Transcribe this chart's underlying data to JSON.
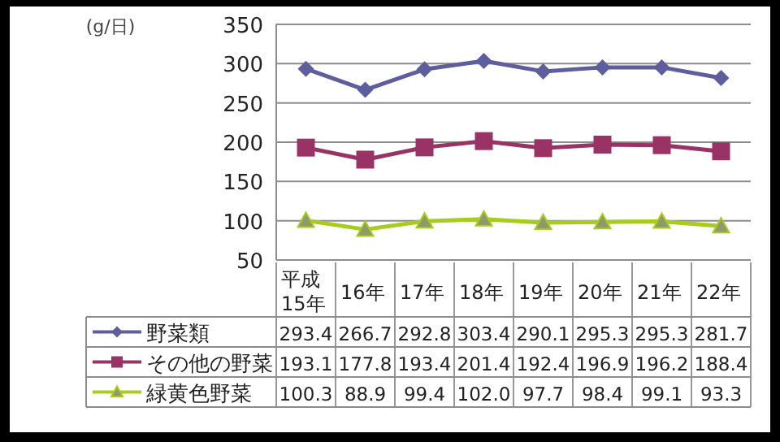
{
  "chart_data": {
    "type": "line",
    "ylabel": "(g/日)",
    "categories": [
      "平成15年",
      "16年",
      "17年",
      "18年",
      "19年",
      "20年",
      "21年",
      "22年"
    ],
    "series": [
      {
        "name": "野菜類",
        "color": "#5e5e9e",
        "marker": "diamond",
        "values": [
          293.4,
          266.7,
          292.8,
          303.4,
          290.1,
          295.3,
          295.3,
          281.7
        ],
        "value_labels": [
          "293.4",
          "266.7",
          "292.8",
          "303.4",
          "290.1",
          "295.3",
          "295.3",
          "281.7"
        ]
      },
      {
        "name": "その他の野菜",
        "color": "#993366",
        "marker": "square",
        "values": [
          193.1,
          177.8,
          193.4,
          201.4,
          192.4,
          196.9,
          196.2,
          188.4
        ],
        "value_labels": [
          "193.1",
          "177.8",
          "193.4",
          "201.4",
          "192.4",
          "196.9",
          "196.2",
          "188.4"
        ]
      },
      {
        "name": "緑黄色野菜",
        "color": "#a8cc1c",
        "marker": "triangle",
        "values": [
          100.3,
          88.9,
          99.4,
          102.0,
          97.7,
          98.4,
          99.1,
          93.3
        ],
        "value_labels": [
          "100.3",
          "88.9",
          "99.4",
          "102.0",
          "97.7",
          "98.4",
          "99.1",
          "93.3"
        ]
      }
    ],
    "ylim": [
      50,
      350
    ],
    "yticks": [
      50,
      100,
      150,
      200,
      250,
      300,
      350
    ],
    "grid": "y",
    "legend": "bottom"
  }
}
